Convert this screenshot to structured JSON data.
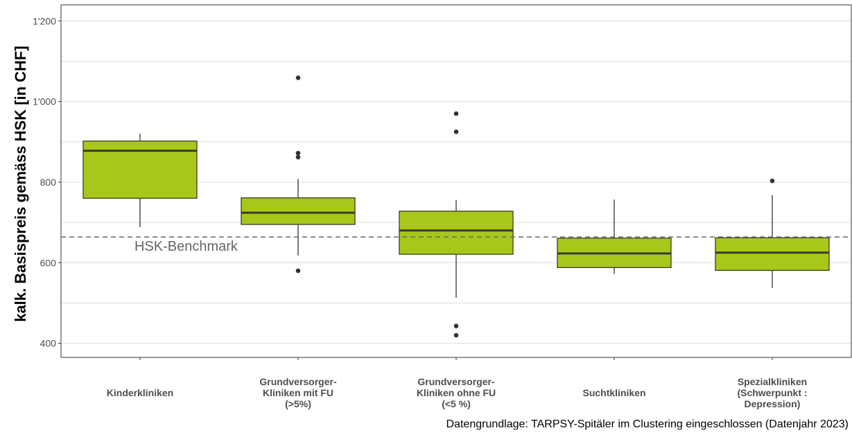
{
  "chart_data": {
    "type": "boxplot",
    "ylabel": "kalk. Basispreis gemäss HSK [in CHF]",
    "ylim": [
      365,
      1240
    ],
    "yticks": [
      400,
      600,
      800,
      1000,
      1200
    ],
    "ytick_labels": [
      "400",
      "600",
      "800",
      "1'000",
      "1'200"
    ],
    "minor_gridlines": [
      500,
      700,
      900,
      1100
    ],
    "grid": true,
    "colors": {
      "box_fill": "#a7c81a",
      "box_stroke": "#3a3a2a",
      "whisker": "#333333",
      "benchmark": "#666666"
    },
    "benchmark": {
      "value": 664,
      "label": "HSK-Benchmark"
    },
    "categories": [
      {
        "label_lines": [
          "Kinderkliniken"
        ],
        "whisker_low": 688,
        "q1": 760,
        "median": 878,
        "q3": 902,
        "whisker_high": 920,
        "outliers": []
      },
      {
        "label_lines": [
          "Grundversorger-",
          "Kliniken mit FU",
          "(>5%)"
        ],
        "whisker_low": 618,
        "q1": 695,
        "median": 724,
        "q3": 761,
        "whisker_high": 808,
        "outliers": [
          580,
          862,
          872,
          1059
        ]
      },
      {
        "label_lines": [
          "Grundversorger-",
          "Kliniken ohne FU",
          "(<5 %)"
        ],
        "whisker_low": 513,
        "q1": 621,
        "median": 680,
        "q3": 728,
        "whisker_high": 756,
        "outliers": [
          420,
          443,
          925,
          970
        ]
      },
      {
        "label_lines": [
          "Suchtkliniken"
        ],
        "whisker_low": 572,
        "q1": 588,
        "median": 623,
        "q3": 661,
        "whisker_high": 757,
        "outliers": []
      },
      {
        "label_lines": [
          "Spezialkliniken",
          "(Schwerpunkt :",
          "Depression)"
        ],
        "whisker_low": 537,
        "q1": 581,
        "median": 625,
        "q3": 662,
        "whisker_high": 768,
        "outliers": [
          803
        ]
      }
    ]
  },
  "caption": "Datengrundlage: TARPSY-Spitäler im Clustering eingeschlossen (Datenjahr 2023)"
}
